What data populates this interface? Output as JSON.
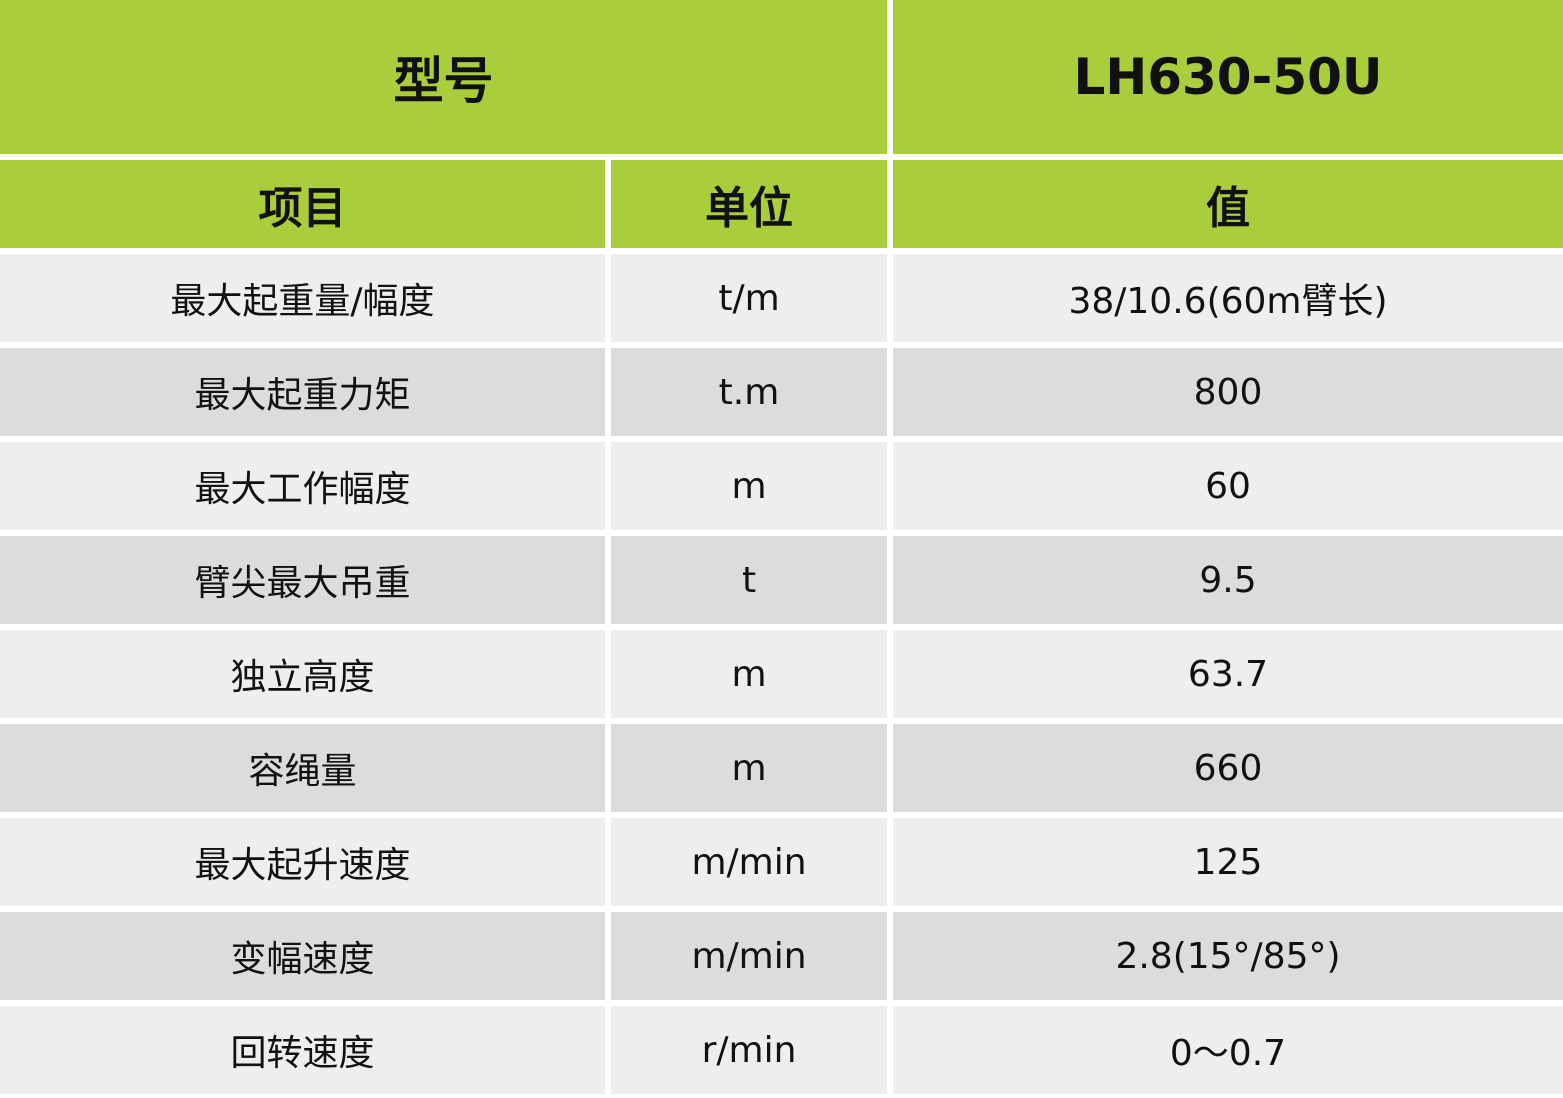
{
  "header": {
    "model_label": "型号",
    "model_value": "LH630-50U"
  },
  "columns": [
    "项目",
    "单位",
    "值"
  ],
  "rows": [
    {
      "item": "最大起重量/幅度",
      "unit": "t/m",
      "value": "38/10.6(60m臂长)"
    },
    {
      "item": "最大起重力矩",
      "unit": "t.m",
      "value": "800"
    },
    {
      "item": "最大工作幅度",
      "unit": "m",
      "value": "60"
    },
    {
      "item": "臂尖最大吊重",
      "unit": "t",
      "value": "9.5"
    },
    {
      "item": "独立高度",
      "unit": "m",
      "value": "63.7"
    },
    {
      "item": "容绳量",
      "unit": "m",
      "value": "660"
    },
    {
      "item": "最大起升速度",
      "unit": "m/min",
      "value": "125"
    },
    {
      "item": "变幅速度",
      "unit": "m/min",
      "value": "2.8(15°/85°)"
    },
    {
      "item": "回转速度",
      "unit": "r/min",
      "value": "0～0.7"
    }
  ],
  "colors": {
    "header_green": "#a9cd3b",
    "row_light": "#eeeeee",
    "row_dark": "#dcdcdc"
  }
}
